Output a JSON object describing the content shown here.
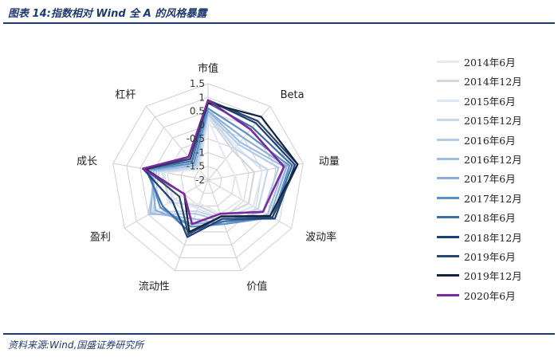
{
  "header": {
    "title": "图表 14:指数相对 Wind 全 A 的风格暴露"
  },
  "footer": {
    "source": "资料来源:Wind,国盛证券研究所"
  },
  "chart_data": {
    "type": "radar",
    "title": "",
    "axes": [
      "市值",
      "Beta",
      "动量",
      "波动率",
      "价值",
      "流动性",
      "盈利",
      "成长",
      "杠杆"
    ],
    "radial_ticks": [
      "1.5",
      "1",
      "0.5",
      "0",
      "-0.5",
      "-1",
      "-1.5",
      "-2"
    ],
    "rlim": [
      -2,
      1.5
    ],
    "grid": true,
    "legend_position": "right",
    "series": [
      {
        "name": "2014年6月",
        "color": "#e6e9ef",
        "values": [
          0.2,
          -1.0,
          -1.0,
          -0.6,
          -0.7,
          -1.1,
          -0.3,
          -0.4,
          -1.5
        ]
      },
      {
        "name": "2014年12月",
        "color": "#d3d6dc",
        "values": [
          0.3,
          -0.6,
          -0.3,
          -0.3,
          -0.6,
          -1.0,
          -0.4,
          -0.3,
          -1.4
        ]
      },
      {
        "name": "2015年6月",
        "color": "#dde6f2",
        "values": [
          0.3,
          -0.4,
          0.0,
          -0.1,
          -0.5,
          -0.9,
          -0.6,
          -0.3,
          -1.3
        ]
      },
      {
        "name": "2015年12月",
        "color": "#c7d8ee",
        "values": [
          0.4,
          -0.5,
          0.2,
          0.1,
          -0.5,
          -0.8,
          0.3,
          -0.2,
          -1.4
        ]
      },
      {
        "name": "2016年6月",
        "color": "#b3cbe8",
        "values": [
          0.4,
          -0.3,
          0.6,
          0.3,
          -0.4,
          -0.7,
          0.5,
          -0.1,
          -1.3
        ]
      },
      {
        "name": "2016年12月",
        "color": "#9fbde2",
        "values": [
          0.5,
          -0.2,
          0.8,
          0.5,
          -0.3,
          -0.5,
          0.4,
          0.0,
          -1.3
        ]
      },
      {
        "name": "2017年6月",
        "color": "#8caed8",
        "values": [
          0.5,
          0.0,
          0.9,
          0.6,
          -0.4,
          -0.3,
          0.2,
          0.1,
          -1.2
        ]
      },
      {
        "name": "2017年12月",
        "color": "#5e90c8",
        "values": [
          0.6,
          0.2,
          1.0,
          0.7,
          -0.3,
          -0.2,
          0.0,
          0.2,
          -1.2
        ]
      },
      {
        "name": "2018年6月",
        "color": "#3e6fa8",
        "values": [
          0.8,
          0.5,
          1.1,
          0.7,
          -0.4,
          0.0,
          -0.1,
          0.3,
          -1.1
        ]
      },
      {
        "name": "2018年12月",
        "color": "#1f3f78",
        "values": [
          0.9,
          0.7,
          1.2,
          0.8,
          -0.5,
          0.2,
          -0.5,
          0.4,
          -1.0
        ]
      },
      {
        "name": "2019年6月",
        "color": "#2a4868",
        "values": [
          0.9,
          0.8,
          1.3,
          0.7,
          -0.6,
          0.1,
          -0.8,
          0.3,
          -1.0
        ]
      },
      {
        "name": "2019年12月",
        "color": "#14233f",
        "values": [
          0.8,
          1.0,
          1.3,
          0.6,
          -0.6,
          0.0,
          -1.0,
          0.3,
          -0.9
        ]
      },
      {
        "name": "2020年6月",
        "color": "#7a2ba0",
        "values": [
          0.9,
          0.4,
          0.8,
          0.3,
          -0.7,
          -0.3,
          -1.0,
          0.4,
          -0.9
        ]
      }
    ]
  }
}
